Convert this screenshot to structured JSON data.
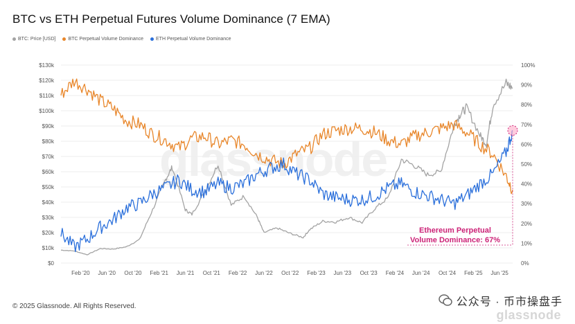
{
  "chart_data": {
    "type": "line",
    "title": "BTC vs ETH Perpetual Futures Volume Dominance (7 EMA)",
    "legend_position": "top-left",
    "grid": true,
    "x_tick_labels": [
      "Feb '20",
      "Jun '20",
      "Oct '20",
      "Feb '21",
      "Jun '21",
      "Oct '21",
      "Feb '22",
      "Jun '22",
      "Oct '22",
      "Feb '23",
      "Jun '23",
      "Oct '23",
      "Feb '24",
      "Jun '24",
      "Oct '24",
      "Feb '25",
      "Jun '25"
    ],
    "xlim": [
      "2019-11",
      "2025-08"
    ],
    "y_left": {
      "ticks": [
        "$0",
        "$10k",
        "$20k",
        "$30k",
        "$40k",
        "$50k",
        "$60k",
        "$70k",
        "$80k",
        "$90k",
        "$100k",
        "$110k",
        "$120k",
        "$130k"
      ],
      "ylim": [
        0,
        130000
      ]
    },
    "y_right": {
      "ticks": [
        "0%",
        "10%",
        "20%",
        "30%",
        "40%",
        "50%",
        "60%",
        "70%",
        "80%",
        "90%",
        "100%"
      ],
      "ylim": [
        0,
        100
      ]
    },
    "series": [
      {
        "name": "BTC: Price [USD]",
        "axis": "left",
        "color": "#a3a3a3",
        "x": [
          "2019-11",
          "2020-01",
          "2020-03",
          "2020-05",
          "2020-07",
          "2020-09",
          "2020-11",
          "2021-01",
          "2021-03",
          "2021-04",
          "2021-06",
          "2021-07",
          "2021-09",
          "2021-11",
          "2022-01",
          "2022-03",
          "2022-05",
          "2022-06",
          "2022-08",
          "2022-10",
          "2022-12",
          "2023-01",
          "2023-03",
          "2023-05",
          "2023-07",
          "2023-09",
          "2023-11",
          "2024-01",
          "2024-03",
          "2024-05",
          "2024-07",
          "2024-09",
          "2024-11",
          "2024-12",
          "2025-01",
          "2025-03",
          "2025-04",
          "2025-05",
          "2025-07",
          "2025-08"
        ],
        "values": [
          8500,
          8000,
          5500,
          9500,
          9200,
          10700,
          15500,
          35000,
          55000,
          63000,
          35000,
          32000,
          47000,
          65000,
          38000,
          44000,
          30000,
          20000,
          23000,
          19500,
          16800,
          22000,
          27500,
          27000,
          30000,
          26500,
          36000,
          43000,
          68000,
          64000,
          58000,
          60000,
          90000,
          98000,
          102000,
          84000,
          78000,
          104000,
          118000,
          115000
        ]
      },
      {
        "name": "BTC Perpetual Volume Dominance",
        "axis": "right",
        "color": "#e8862a",
        "x": [
          "2019-11",
          "2020-01",
          "2020-03",
          "2020-05",
          "2020-07",
          "2020-09",
          "2020-11",
          "2021-01",
          "2021-03",
          "2021-05",
          "2021-07",
          "2021-09",
          "2021-11",
          "2022-01",
          "2022-03",
          "2022-05",
          "2022-07",
          "2022-09",
          "2022-11",
          "2023-01",
          "2023-03",
          "2023-05",
          "2023-07",
          "2023-09",
          "2023-11",
          "2024-01",
          "2024-03",
          "2024-05",
          "2024-07",
          "2024-09",
          "2024-11",
          "2025-01",
          "2025-03",
          "2025-05",
          "2025-07",
          "2025-08"
        ],
        "values": [
          85,
          92,
          88,
          82,
          78,
          72,
          70,
          65,
          62,
          58,
          63,
          64,
          60,
          62,
          60,
          55,
          52,
          50,
          55,
          58,
          65,
          67,
          68,
          68,
          66,
          62,
          60,
          64,
          66,
          68,
          70,
          66,
          60,
          55,
          44,
          37
        ]
      },
      {
        "name": "ETH Perpetual Volume Dominance",
        "axis": "right",
        "color": "#2a6fdb",
        "x": [
          "2019-11",
          "2020-01",
          "2020-03",
          "2020-05",
          "2020-07",
          "2020-09",
          "2020-11",
          "2021-01",
          "2021-03",
          "2021-05",
          "2021-07",
          "2021-09",
          "2021-11",
          "2022-01",
          "2022-03",
          "2022-05",
          "2022-07",
          "2022-09",
          "2022-11",
          "2023-01",
          "2023-03",
          "2023-05",
          "2023-07",
          "2023-09",
          "2023-11",
          "2024-01",
          "2024-03",
          "2024-05",
          "2024-07",
          "2024-09",
          "2024-11",
          "2025-01",
          "2025-03",
          "2025-05",
          "2025-07",
          "2025-08"
        ],
        "values": [
          15,
          8,
          12,
          18,
          22,
          28,
          30,
          35,
          38,
          42,
          37,
          36,
          40,
          38,
          40,
          45,
          48,
          50,
          45,
          42,
          35,
          33,
          32,
          32,
          34,
          38,
          40,
          36,
          34,
          32,
          30,
          34,
          40,
          45,
          56,
          67
        ]
      }
    ],
    "annotation": {
      "text_line1": "Ethereum Perpetual",
      "text_line2": "Volume Dominance: 67%"
    }
  },
  "footer": {
    "copyright": "© 2025 Glassnode. All Rights Reserved.",
    "wechat_text": "公众号 · 币市操盘手",
    "brand": "glassnode"
  },
  "watermark": "glassnode"
}
